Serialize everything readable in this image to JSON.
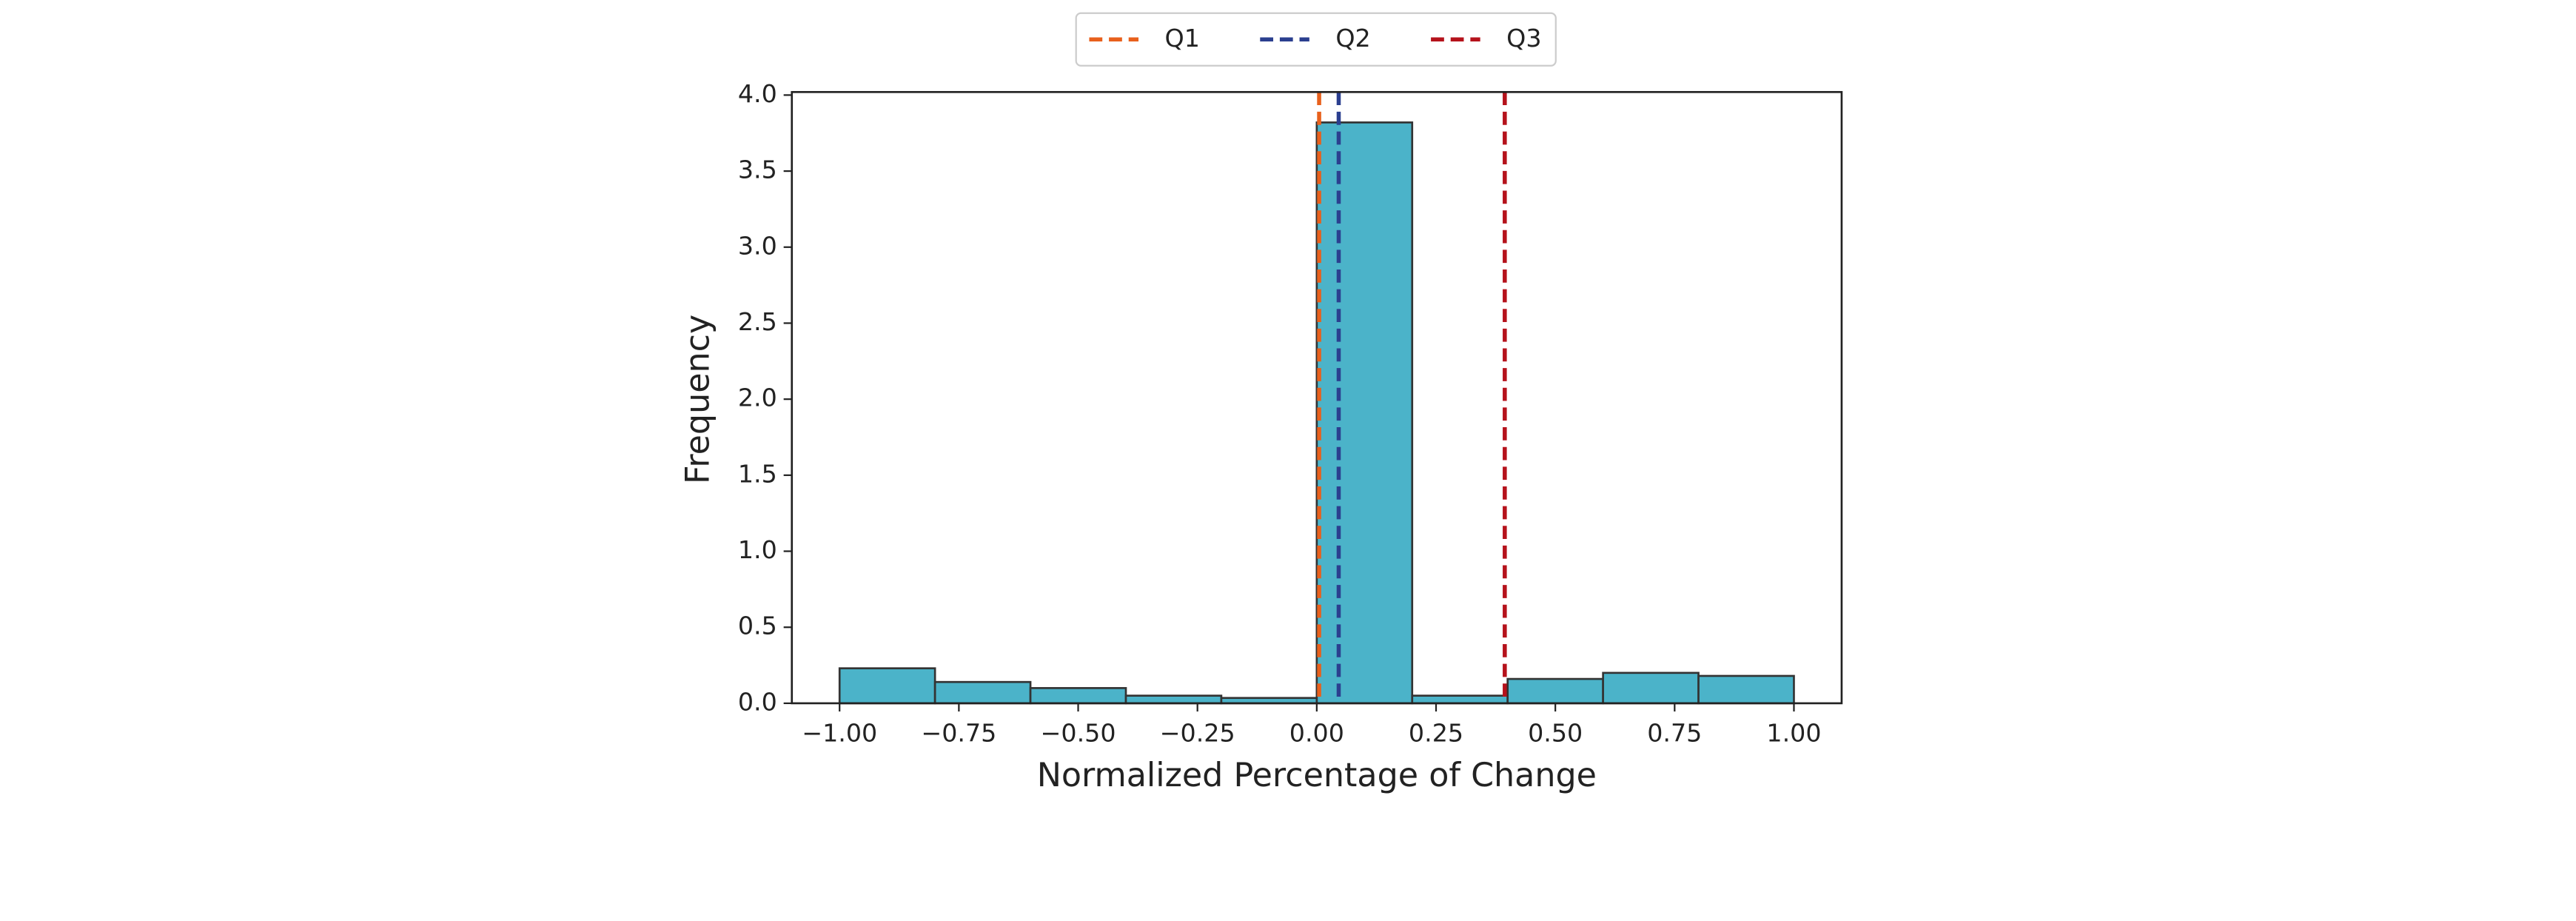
{
  "chart_data": {
    "type": "histogram",
    "xlabel": "Normalized Percentage of Change",
    "ylabel": "Frequency",
    "bins": [
      -1.0,
      -0.8,
      -0.6,
      -0.4,
      -0.2,
      0.0,
      0.2,
      0.4,
      0.6,
      0.8,
      1.0
    ],
    "values": [
      0.23,
      0.14,
      0.1,
      0.05,
      0.035,
      3.82,
      0.05,
      0.16,
      0.2,
      0.18
    ],
    "color": "#4bb3c9",
    "edgecolor": "#333333",
    "xlim": [
      -1.1,
      1.1
    ],
    "ylim": [
      0,
      4.02
    ],
    "xticks": [
      {
        "value": -1.0,
        "label": "−1.00"
      },
      {
        "value": -0.75,
        "label": "−0.75"
      },
      {
        "value": -0.5,
        "label": "−0.50"
      },
      {
        "value": -0.25,
        "label": "−0.25"
      },
      {
        "value": 0,
        "label": "0.00"
      },
      {
        "value": 0.25,
        "label": "0.25"
      },
      {
        "value": 0.5,
        "label": "0.50"
      },
      {
        "value": 0.75,
        "label": "0.75"
      },
      {
        "value": 1.0,
        "label": "1.00"
      }
    ],
    "yticks": [
      {
        "value": 0,
        "label": "0.0"
      },
      {
        "value": 0.5,
        "label": "0.5"
      },
      {
        "value": 1.0,
        "label": "1.0"
      },
      {
        "value": 1.5,
        "label": "1.5"
      },
      {
        "value": 2.0,
        "label": "2.0"
      },
      {
        "value": 2.5,
        "label": "2.5"
      },
      {
        "value": 3.0,
        "label": "3.0"
      },
      {
        "value": 3.5,
        "label": "3.5"
      },
      {
        "value": 4.0,
        "label": "4.0"
      }
    ],
    "lines": [
      {
        "name": "Q1",
        "color": "#e8601c",
        "value": 0.005
      },
      {
        "name": "Q2",
        "color": "#2b3f8f",
        "value": 0.046
      },
      {
        "name": "Q3",
        "color": "#b5121b",
        "value": 0.394
      }
    ],
    "legend": "upper center"
  }
}
